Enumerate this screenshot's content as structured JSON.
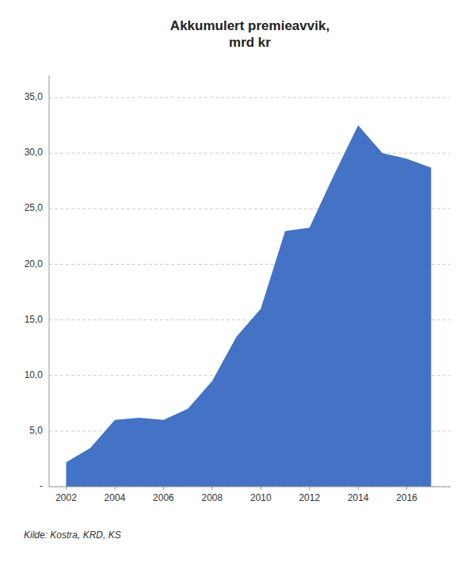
{
  "chart_data": {
    "type": "area",
    "title": "Akkumulert premieavvik,\nmrd kr",
    "x": [
      2002,
      2003,
      2004,
      2005,
      2006,
      2007,
      2008,
      2009,
      2010,
      2011,
      2012,
      2013,
      2014,
      2015,
      2016,
      2017
    ],
    "values": [
      2.2,
      3.5,
      6.0,
      6.2,
      6.0,
      7.0,
      9.5,
      13.5,
      16.0,
      23.0,
      23.3,
      28.0,
      32.5,
      30.0,
      29.5,
      28.7
    ],
    "color": "#4472C4",
    "xlim": [
      2001.3,
      2017.8
    ],
    "xticks": [
      2002,
      2004,
      2006,
      2008,
      2010,
      2012,
      2014,
      2016
    ],
    "ylim": [
      0,
      37
    ],
    "yticks": [
      {
        "value": 0,
        "label": "-"
      },
      {
        "value": 5.0,
        "label": "5,0"
      },
      {
        "value": 10.0,
        "label": "10,0"
      },
      {
        "value": 15.0,
        "label": "15,0"
      },
      {
        "value": 20.0,
        "label": "20,0"
      },
      {
        "value": 25.0,
        "label": "25,0"
      },
      {
        "value": 30.0,
        "label": "30,0"
      },
      {
        "value": 35.0,
        "label": "35,0"
      }
    ],
    "grid": true,
    "source": "Kilde: Kostra, KRD, KS"
  }
}
